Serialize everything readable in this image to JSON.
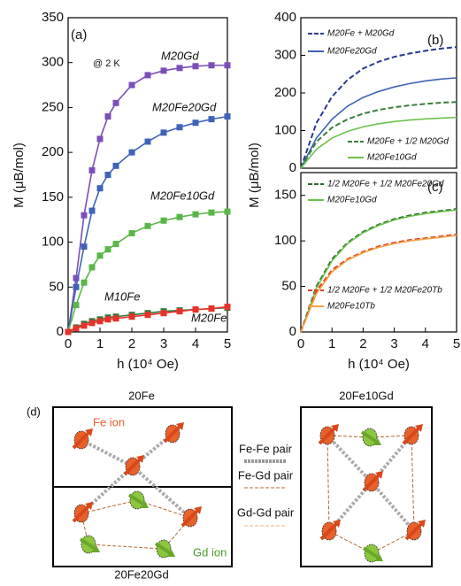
{
  "chart_data": [
    {
      "type": "line",
      "panel_label": "(a)",
      "annotation": "@ 2 K",
      "markers": true,
      "x_label": "h (10⁴ Oe)",
      "y_label": "M (μB/mol)",
      "x": [
        0,
        0.25,
        0.5,
        0.75,
        1,
        1.25,
        1.5,
        2,
        2.5,
        3,
        3.5,
        4,
        4.5,
        5
      ],
      "xlim": [
        0,
        5
      ],
      "xticks": [
        0,
        1,
        2,
        3,
        4,
        5
      ],
      "ylim": [
        0,
        350
      ],
      "yticks": [
        0,
        50,
        100,
        150,
        200,
        250,
        300,
        350
      ],
      "series": [
        {
          "name": "M20Gd",
          "color": "#7b4fb8",
          "values": [
            0,
            60,
            130,
            180,
            215,
            240,
            255,
            275,
            286,
            291,
            294,
            296,
            297,
            297
          ]
        },
        {
          "name": "M20Fe20Gd",
          "color": "#3f63b8",
          "values": [
            0,
            50,
            95,
            135,
            160,
            175,
            185,
            200,
            212,
            222,
            228,
            233,
            237,
            240
          ]
        },
        {
          "name": "M20Fe10Gd",
          "color": "#5ab648",
          "values": [
            0,
            30,
            55,
            72,
            85,
            92,
            98,
            110,
            118,
            124,
            128,
            131,
            133,
            134
          ]
        },
        {
          "name": "M10Fe",
          "color": "#2d7a3a",
          "values": [
            0,
            5,
            9,
            12,
            14,
            16,
            17,
            19,
            21,
            23,
            24,
            25,
            26,
            27
          ]
        },
        {
          "name": "M20Fe",
          "color": "#e8312a",
          "values": [
            0,
            4,
            7,
            10,
            12,
            14,
            15,
            17,
            19,
            21,
            23,
            25,
            26,
            28
          ]
        }
      ]
    },
    {
      "type": "line",
      "panel_label": "(b)",
      "y_label": "M (μB/mol)",
      "x": [
        0,
        0.5,
        1,
        1.5,
        2,
        2.5,
        3,
        3.5,
        4,
        4.5,
        5
      ],
      "xlim": [
        0,
        5
      ],
      "ylim": [
        0,
        400
      ],
      "yticks": [
        0,
        100,
        200,
        300,
        400
      ],
      "series": [
        {
          "name": "M20Fe + M20Gd",
          "color": "#2a3a8c",
          "dashed": true,
          "values": [
            0,
            120,
            190,
            235,
            265,
            283,
            296,
            305,
            312,
            318,
            322
          ]
        },
        {
          "name": "M20Fe20Gd",
          "color": "#3f63b8",
          "dashed": false,
          "values": [
            0,
            80,
            130,
            165,
            188,
            204,
            216,
            225,
            232,
            237,
            240
          ]
        },
        {
          "name": "M20Fe + 1/2 M20Gd",
          "color": "#3a7d3a",
          "dashed": true,
          "values": [
            0,
            70,
            108,
            130,
            145,
            155,
            162,
            167,
            171,
            174,
            176
          ]
        },
        {
          "name": "M20Fe10Gd",
          "color": "#6cc24a",
          "dashed": false,
          "values": [
            0,
            50,
            80,
            98,
            110,
            118,
            124,
            128,
            131,
            133,
            135
          ]
        }
      ]
    },
    {
      "type": "line",
      "panel_label": "(c)",
      "x_label": "h (10⁴ Oe)",
      "x": [
        0,
        0.5,
        1,
        1.5,
        2,
        2.5,
        3,
        3.5,
        4,
        4.5,
        5
      ],
      "xlim": [
        0,
        5
      ],
      "xticks": [
        0,
        1,
        2,
        3,
        4,
        5
      ],
      "ylim": [
        0,
        175
      ],
      "yticks": [
        0,
        50,
        100,
        150
      ],
      "series": [
        {
          "name": "1/2 M20Fe + 1/2 M20Fe20Gd",
          "color": "#2d6b2d",
          "dashed": true,
          "values": [
            0,
            50,
            80,
            98,
            110,
            118,
            124,
            128,
            131,
            133,
            135
          ]
        },
        {
          "name": "M20Fe10Gd",
          "color": "#6cc24a",
          "dashed": false,
          "values": [
            0,
            48,
            78,
            97,
            109,
            117,
            123,
            127,
            130,
            132,
            134
          ]
        },
        {
          "name": "1/2 M20Fe + 1/2 M20Fe20Tb",
          "color": "#e0401f",
          "dashed": true,
          "values": [
            0,
            45,
            68,
            80,
            88,
            94,
            98,
            101,
            103,
            105,
            107
          ]
        },
        {
          "name": "M20Fe10Tb",
          "color": "#f5a34a",
          "dashed": false,
          "values": [
            0,
            42,
            66,
            79,
            87,
            93,
            97,
            100,
            102,
            104,
            106
          ]
        }
      ]
    }
  ],
  "diagram": {
    "panel_label": "(d)",
    "titles": [
      "20Fe",
      "20Fe10Gd",
      "20Fe20Gd"
    ],
    "ion_labels": [
      "Fe ion",
      "Gd ion"
    ],
    "legend": [
      "Fe-Fe pair",
      "Fe-Gd pair",
      "Gd-Gd pair"
    ]
  }
}
